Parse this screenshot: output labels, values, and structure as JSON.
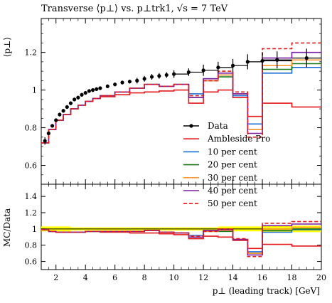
{
  "title": "Transverse ⟨p⊥⟩ vs. p⊥trk1, √s = 7 TeV",
  "legend": {
    "entries": [
      {
        "label": "Data",
        "color": "#000000",
        "style": "marker"
      },
      {
        "label": "Ambleside Pro",
        "color": "#e41a1c",
        "style": "solid"
      },
      {
        "label": "10 per cent",
        "color": "#1f6fd6",
        "style": "solid"
      },
      {
        "label": "20 per cent",
        "color": "#1a7a1a",
        "style": "solid"
      },
      {
        "label": "30 per cent",
        "color": "#ff9933",
        "style": "solid"
      },
      {
        "label": "40 per cent",
        "color": "#7a1fa2",
        "style": "solid"
      },
      {
        "label": "50 per cent",
        "color": "#e41a1c",
        "style": "dashed"
      }
    ]
  },
  "chart_data": [
    {
      "type": "line",
      "panel": "main",
      "ylabel": "⟨p⊥⟩",
      "xlim": [
        1,
        20
      ],
      "ylim": [
        0.5,
        1.38
      ],
      "yticks": [
        0.6,
        0.8,
        1,
        1.2
      ],
      "ytick_labels": [
        "0.6",
        "0.8",
        "1",
        "1.2"
      ],
      "data": {
        "x": [
          1.25,
          1.5,
          1.75,
          2.0,
          2.25,
          2.5,
          2.75,
          3.0,
          3.25,
          3.5,
          3.75,
          4.0,
          4.25,
          4.5,
          4.75,
          5.0,
          5.5,
          6.0,
          6.5,
          7.0,
          7.5,
          8.0,
          8.5,
          9.0,
          9.5,
          10.0,
          11.0,
          12.0,
          13.0,
          14.0,
          15.0,
          16.0,
          17.0,
          19.0
        ],
        "y": [
          0.73,
          0.77,
          0.81,
          0.84,
          0.87,
          0.89,
          0.91,
          0.93,
          0.95,
          0.96,
          0.975,
          0.985,
          0.995,
          1.0,
          1.005,
          1.01,
          1.02,
          1.03,
          1.04,
          1.045,
          1.05,
          1.06,
          1.07,
          1.075,
          1.08,
          1.085,
          1.095,
          1.105,
          1.12,
          1.13,
          1.15,
          1.155,
          1.16,
          1.17
        ],
        "yerr": [
          0.02,
          0.01,
          0.01,
          0.01,
          0.01,
          0.01,
          0.01,
          0.01,
          0.01,
          0.01,
          0.01,
          0.01,
          0.01,
          0.01,
          0.01,
          0.01,
          0.01,
          0.01,
          0.01,
          0.01,
          0.015,
          0.015,
          0.015,
          0.015,
          0.015,
          0.02,
          0.02,
          0.03,
          0.03,
          0.035,
          0.04,
          0.045,
          0.045,
          0.05
        ]
      },
      "bin_edges": [
        1,
        1.5,
        2,
        2.5,
        3,
        3.5,
        4,
        4.5,
        5,
        6,
        7,
        8,
        9,
        10,
        11,
        12,
        13,
        14,
        15,
        16,
        18,
        20
      ],
      "series": [
        {
          "name": "Ambleside Pro",
          "values": [
            0.72,
            0.79,
            0.84,
            0.87,
            0.9,
            0.92,
            0.94,
            0.955,
            0.965,
            0.975,
            0.985,
            0.99,
            0.995,
            1.0,
            0.93,
            0.99,
            1.0,
            0.96,
            0.86,
            0.93,
            0.91,
            0.9
          ]
        },
        {
          "name": "10 per cent",
          "values": [
            0.72,
            0.79,
            0.84,
            0.87,
            0.9,
            0.92,
            0.94,
            0.955,
            0.97,
            0.99,
            1.01,
            1.03,
            1.02,
            1.03,
            0.98,
            1.06,
            1.08,
            0.97,
            0.82,
            1.09,
            1.12,
            0.92
          ]
        },
        {
          "name": "20 per cent",
          "values": [
            0.72,
            0.79,
            0.84,
            0.87,
            0.9,
            0.92,
            0.94,
            0.955,
            0.97,
            0.99,
            1.01,
            1.03,
            1.02,
            1.03,
            0.96,
            1.05,
            1.07,
            0.98,
            0.79,
            1.11,
            1.14,
            0.9
          ]
        },
        {
          "name": "30 per cent",
          "values": [
            0.72,
            0.79,
            0.84,
            0.87,
            0.9,
            0.92,
            0.94,
            0.955,
            0.97,
            0.99,
            1.01,
            1.03,
            1.02,
            1.03,
            0.96,
            1.05,
            1.08,
            0.98,
            0.79,
            1.13,
            1.16,
            0.9
          ]
        },
        {
          "name": "40 per cent",
          "values": [
            0.72,
            0.79,
            0.84,
            0.87,
            0.9,
            0.92,
            0.94,
            0.955,
            0.97,
            0.99,
            1.01,
            1.03,
            1.02,
            1.03,
            0.96,
            1.06,
            1.09,
            0.98,
            0.77,
            1.17,
            1.2,
            0.92
          ]
        },
        {
          "name": "50 per cent",
          "values": [
            0.72,
            0.79,
            0.84,
            0.87,
            0.9,
            0.92,
            0.94,
            0.955,
            0.97,
            0.99,
            1.01,
            1.03,
            1.02,
            1.03,
            0.97,
            1.05,
            1.1,
            0.99,
            0.75,
            1.22,
            1.25,
            0.93
          ]
        }
      ]
    },
    {
      "type": "line",
      "panel": "ratio",
      "ylabel": "MC/Data",
      "xlabel": "p⊥ (leading track) [GeV]",
      "xlim": [
        1,
        20
      ],
      "ylim": [
        0.5,
        1.55
      ],
      "yticks": [
        0.6,
        0.8,
        1,
        1.2,
        1.4
      ],
      "ytick_labels": [
        "0.6",
        "0.8",
        "1",
        "1.2",
        "1.4"
      ],
      "xticks": [
        2,
        4,
        6,
        8,
        10,
        12,
        14,
        16,
        18,
        20
      ],
      "xtick_labels": [
        "2",
        "4",
        "6",
        "8",
        "10",
        "12",
        "14",
        "16",
        "18",
        "20"
      ],
      "band": {
        "lower": [
          0.97,
          0.97,
          0.97,
          0.97,
          0.98,
          0.98,
          0.98,
          0.98,
          0.98,
          0.98,
          0.98,
          0.98,
          0.98,
          0.98,
          0.98,
          0.98,
          0.97,
          0.97,
          0.97,
          0.96,
          0.96,
          0.96
        ],
        "upper": [
          1.03,
          1.03,
          1.03,
          1.03,
          1.02,
          1.02,
          1.02,
          1.02,
          1.02,
          1.02,
          1.02,
          1.02,
          1.02,
          1.02,
          1.02,
          1.02,
          1.03,
          1.03,
          1.03,
          1.04,
          1.04,
          1.04
        ]
      },
      "series": [
        {
          "name": "Ambleside Pro",
          "values": [
            0.99,
            0.97,
            0.96,
            0.96,
            0.96,
            0.96,
            0.97,
            0.97,
            0.96,
            0.96,
            0.95,
            0.95,
            0.94,
            0.93,
            0.88,
            0.91,
            0.9,
            0.86,
            0.76,
            0.81,
            0.79,
            0.77
          ]
        },
        {
          "name": "10 per cent",
          "values": [
            0.99,
            0.97,
            0.96,
            0.96,
            0.96,
            0.96,
            0.97,
            0.97,
            0.97,
            0.97,
            0.97,
            0.98,
            0.96,
            0.95,
            0.92,
            0.98,
            0.98,
            0.87,
            0.72,
            0.96,
            0.99,
            0.78
          ]
        },
        {
          "name": "20 per cent",
          "values": [
            0.99,
            0.97,
            0.96,
            0.96,
            0.96,
            0.96,
            0.97,
            0.97,
            0.97,
            0.97,
            0.97,
            0.98,
            0.96,
            0.95,
            0.9,
            0.97,
            0.97,
            0.87,
            0.7,
            0.98,
            1.0,
            0.77
          ]
        },
        {
          "name": "30 per cent",
          "values": [
            0.99,
            0.97,
            0.96,
            0.96,
            0.96,
            0.96,
            0.97,
            0.97,
            0.97,
            0.97,
            0.97,
            0.98,
            0.96,
            0.95,
            0.9,
            0.97,
            0.98,
            0.87,
            0.7,
            1.0,
            1.02,
            0.77
          ]
        },
        {
          "name": "40 per cent",
          "values": [
            0.99,
            0.97,
            0.96,
            0.96,
            0.96,
            0.96,
            0.97,
            0.97,
            0.97,
            0.97,
            0.97,
            0.98,
            0.96,
            0.95,
            0.9,
            0.98,
            0.99,
            0.87,
            0.68,
            1.04,
            1.06,
            0.79
          ]
        },
        {
          "name": "50 per cent",
          "values": [
            0.99,
            0.97,
            0.96,
            0.96,
            0.96,
            0.96,
            0.97,
            0.97,
            0.97,
            0.97,
            0.97,
            0.98,
            0.96,
            0.95,
            0.91,
            0.97,
            1.0,
            0.88,
            0.66,
            1.07,
            1.09,
            0.8
          ]
        }
      ]
    }
  ]
}
